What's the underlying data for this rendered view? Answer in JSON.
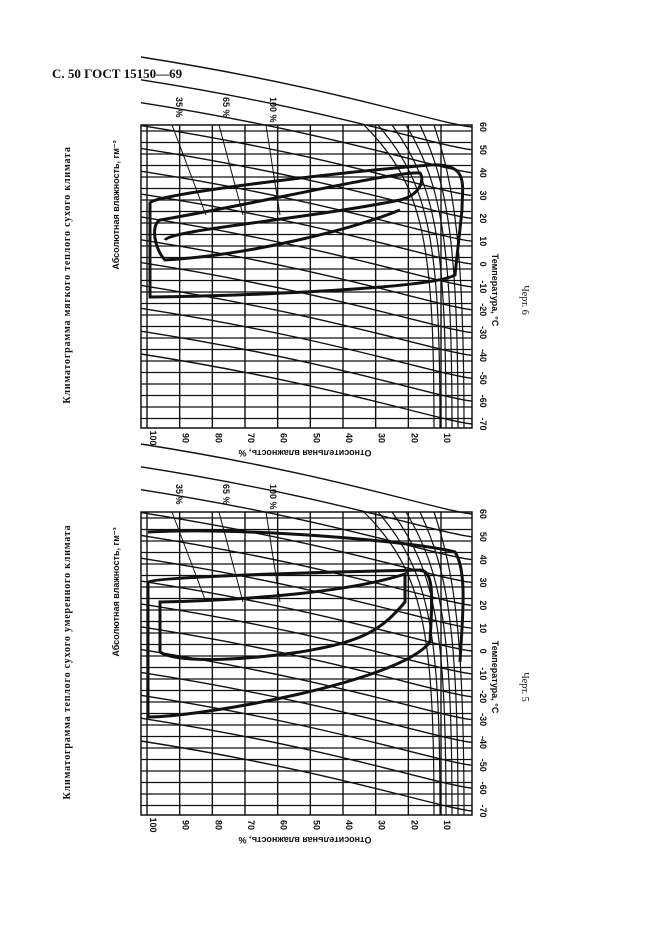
{
  "header": {
    "title": "С. 50 ГОСТ 15150—69"
  },
  "figures": [
    {
      "caption": "Климатограмма мягкого теплого сухого климата",
      "label": "Черт. 6",
      "abs_humidity_label": "Абсолютная влажность, гм⁻³",
      "rh_axis_label": "Относительная влажность, %",
      "temp_axis_label": "Температура, °C",
      "curve_labels": [
        "35 %",
        "65 %",
        "100 %"
      ],
      "rh_ticks": [
        100,
        90,
        80,
        70,
        60,
        50,
        40,
        30,
        20,
        10
      ],
      "temp_ticks": [
        60,
        50,
        40,
        30,
        20,
        10,
        0,
        -10,
        -20,
        -30,
        -40,
        -50,
        -60,
        -70
      ]
    },
    {
      "caption": "Климатограмма теплого сухого умеренного климата",
      "label": "Черт. 5",
      "abs_humidity_label": "Абсолютная влажность, гм⁻³",
      "rh_axis_label": "Относительная влажность, %",
      "temp_axis_label": "Температура, °C",
      "curve_labels": [
        "35 %",
        "65 %",
        "100 %"
      ],
      "rh_ticks": [
        100,
        90,
        80,
        70,
        60,
        50,
        40,
        30,
        20,
        10
      ],
      "temp_ticks": [
        60,
        50,
        40,
        30,
        20,
        10,
        0,
        -10,
        -20,
        -30,
        -40,
        -50,
        -60,
        -70
      ]
    }
  ]
}
